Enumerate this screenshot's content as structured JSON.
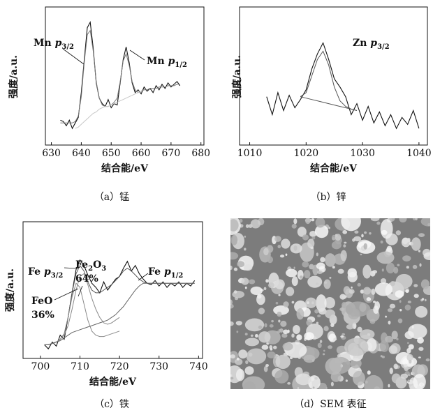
{
  "chart_data": [
    {
      "type": "line",
      "xlabel": "结合能/eV",
      "ylabel": "强度/a.u.",
      "caption": "（a）锰",
      "xlim": [
        628,
        681
      ],
      "xticks": [
        630,
        640,
        650,
        660,
        670,
        680
      ],
      "ylim": [
        0,
        100
      ],
      "x": [
        633,
        634,
        635,
        636,
        637,
        638,
        639,
        640,
        641,
        642,
        643,
        644,
        645,
        646,
        647,
        648,
        649,
        650,
        651,
        652,
        653,
        654,
        655,
        656,
        657,
        658,
        659,
        660,
        661,
        662,
        663,
        664,
        665,
        666,
        667,
        668,
        669,
        670,
        671,
        672,
        673
      ],
      "series": [
        {
          "color": "#111111",
          "values": [
            18,
            17,
            14,
            18,
            12,
            16,
            20,
            38,
            62,
            85,
            89,
            70,
            45,
            34,
            30,
            28,
            33,
            27,
            30,
            29,
            45,
            62,
            71,
            60,
            45,
            38,
            40,
            37,
            42,
            39,
            41,
            38,
            43,
            40,
            44,
            41,
            45,
            42,
            44,
            46,
            43
          ]
        },
        {
          "color": "#777777",
          "values": [
            16,
            16,
            16,
            16,
            16,
            17,
            21,
            35,
            60,
            80,
            83,
            68,
            46,
            34,
            29,
            28,
            28,
            29,
            31,
            34,
            46,
            61,
            66,
            58,
            46,
            40,
            38,
            39,
            40,
            40,
            41,
            41,
            41,
            42,
            42,
            42,
            43,
            43,
            43,
            44,
            44
          ]
        },
        {
          "color": "#c8c8c8",
          "values": [
            null,
            null,
            null,
            null,
            null,
            12,
            13,
            15,
            17,
            19,
            21,
            23,
            24,
            26,
            27,
            28,
            28,
            29,
            30,
            31,
            32,
            33,
            34,
            35,
            36,
            37,
            38,
            39,
            null,
            null,
            null,
            null,
            null,
            null,
            null,
            null,
            null,
            null,
            null,
            null,
            null
          ]
        }
      ],
      "annotations": [
        {
          "lines": [
            [
              {
                "text": "Mn "
              },
              {
                "text": "p",
                "italic": true
              },
              {
                "text": "3/2",
                "sub": true
              }
            ]
          ]
        },
        {
          "lines": [
            [
              {
                "text": "Mn "
              },
              {
                "text": "p",
                "italic": true
              },
              {
                "text": "1/2",
                "sub": true
              }
            ]
          ]
        }
      ]
    },
    {
      "type": "line",
      "xlabel": "结合能/eV",
      "ylabel": "强度/a.u.",
      "caption": "（b）锌",
      "xlim": [
        1008.2,
        1041.5
      ],
      "xticks": [
        1010,
        1020,
        1030,
        1040
      ],
      "ylim": [
        0,
        100
      ],
      "x": [
        1013,
        1014,
        1015,
        1016,
        1017,
        1018,
        1019,
        1020,
        1021,
        1022,
        1023,
        1024,
        1025,
        1026,
        1027,
        1028,
        1029,
        1030,
        1031,
        1032,
        1033,
        1034,
        1035,
        1036,
        1037,
        1038,
        1039,
        1040
      ],
      "series": [
        {
          "color": "#111111",
          "values": [
            35,
            22,
            38,
            25,
            36,
            27,
            33,
            40,
            55,
            66,
            74,
            62,
            48,
            42,
            35,
            22,
            30,
            18,
            28,
            16,
            24,
            14,
            22,
            12,
            20,
            15,
            25,
            12
          ]
        },
        {
          "color": "#555555",
          "values": [
            null,
            null,
            null,
            null,
            null,
            null,
            35,
            38,
            50,
            62,
            68,
            58,
            42,
            32,
            28,
            26,
            25,
            null,
            null,
            null,
            null,
            null,
            null,
            null,
            null,
            null,
            null,
            null
          ]
        },
        {
          "color": "#555555",
          "values": [
            null,
            null,
            null,
            null,
            null,
            null,
            35,
            34,
            33,
            32,
            31,
            30,
            29,
            28,
            27,
            26,
            25,
            null,
            null,
            null,
            null,
            null,
            null,
            null,
            null,
            null,
            null,
            null
          ]
        }
      ],
      "annotations": [
        {
          "lines": [
            [
              {
                "text": "Zn "
              },
              {
                "text": "p",
                "italic": true
              },
              {
                "text": "3/2",
                "sub": true
              }
            ]
          ]
        }
      ]
    },
    {
      "type": "line",
      "xlabel": "结合能/eV",
      "ylabel": "强度/a.u.",
      "caption": "（c）铁",
      "xlim": [
        695.6,
        741
      ],
      "xticks": [
        700,
        710,
        720,
        730,
        740
      ],
      "ylim": [
        0,
        100
      ],
      "x": [
        701,
        702,
        703,
        704,
        705,
        706,
        707,
        708,
        709,
        710,
        711,
        712,
        713,
        714,
        715,
        716,
        717,
        718,
        719,
        720,
        721,
        722,
        723,
        724,
        725,
        726,
        727,
        728,
        729,
        730,
        731,
        732,
        733,
        734,
        735,
        736,
        737,
        738,
        739
      ],
      "series": [
        {
          "color": "#111111",
          "values": [
            10,
            7,
            12,
            9,
            17,
            14,
            30,
            48,
            65,
            72,
            68,
            61,
            55,
            52,
            48,
            56,
            50,
            54,
            58,
            60,
            66,
            71,
            64,
            68,
            62,
            58,
            55,
            54,
            57,
            53,
            56,
            52,
            55,
            53,
            56,
            52,
            55,
            53,
            57
          ]
        },
        {
          "color": "#555555",
          "values": [
            10,
            10,
            11,
            12,
            14,
            18,
            30,
            48,
            62,
            68,
            64,
            56,
            50,
            48,
            48,
            50,
            52,
            54,
            57,
            60,
            64,
            66,
            64,
            61,
            58,
            56,
            55,
            55,
            55,
            55,
            55,
            55,
            55,
            55,
            55,
            55,
            55,
            55,
            55
          ]
        },
        {
          "color": "#8a8a8a",
          "values": [
            10,
            10,
            11,
            12,
            14,
            18,
            30,
            45,
            55,
            52,
            40,
            28,
            20,
            17,
            16,
            16,
            17,
            18,
            19,
            20,
            null,
            null,
            null,
            null,
            null,
            null,
            null,
            null,
            null,
            null,
            null,
            null,
            null,
            null,
            null,
            null,
            null,
            null,
            null
          ]
        },
        {
          "color": "#8a8a8a",
          "values": [
            null,
            null,
            null,
            null,
            14,
            17,
            24,
            36,
            50,
            60,
            62,
            54,
            44,
            36,
            30,
            26,
            25,
            26,
            28,
            30,
            null,
            null,
            null,
            null,
            null,
            null,
            null,
            null,
            null,
            null,
            null,
            null,
            null,
            null,
            null,
            null,
            null,
            null,
            null
          ]
        },
        {
          "color": "#666666",
          "values": [
            10,
            10,
            11,
            12,
            13,
            15,
            17,
            19,
            20,
            21,
            22,
            23,
            24,
            25,
            26,
            27,
            28,
            30,
            32,
            35,
            38,
            42,
            46,
            50,
            53,
            55,
            55,
            55,
            55,
            55,
            55,
            55,
            55,
            55,
            55,
            55,
            55,
            55,
            55
          ]
        }
      ],
      "annotations": [
        {
          "lines": [
            [
              {
                "text": "Fe "
              },
              {
                "text": "p",
                "italic": true
              },
              {
                "text": "3/2",
                "sub": true
              }
            ]
          ]
        },
        {
          "lines": [
            [
              {
                "text": "Fe"
              },
              {
                "text": "2",
                "sub": true
              },
              {
                "text": "O"
              },
              {
                "text": "3",
                "sub": true
              }
            ],
            [
              {
                "text": "64%"
              }
            ]
          ]
        },
        {
          "lines": [
            [
              {
                "text": "FeO"
              }
            ],
            [
              {
                "text": "36%"
              }
            ]
          ]
        },
        {
          "lines": [
            [
              {
                "text": "Fe "
              },
              {
                "text": "p",
                "italic": true
              },
              {
                "text": "1/2",
                "sub": true
              }
            ]
          ]
        }
      ]
    }
  ],
  "image_caption": "（d）SEM 表征"
}
